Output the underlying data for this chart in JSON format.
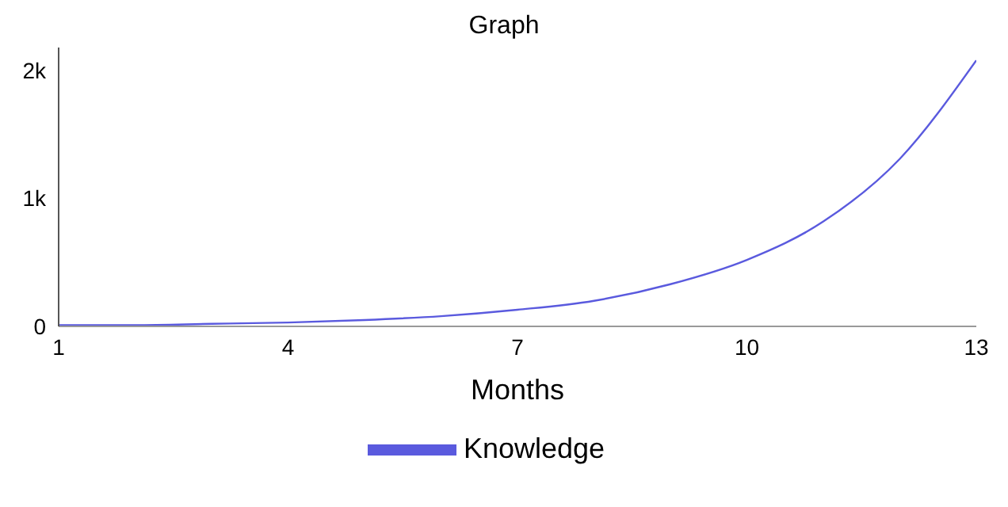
{
  "chart_data": {
    "type": "line",
    "title": "Graph",
    "xlabel": "Months",
    "x": [
      1,
      2,
      3,
      4,
      5,
      6,
      7,
      8,
      9,
      10,
      11,
      12,
      13
    ],
    "series": [
      {
        "name": "Knowledge",
        "color": "#5a5ade",
        "values": [
          10,
          10,
          20,
          30,
          50,
          80,
          130,
          200,
          330,
          520,
          820,
          1310,
          2080
        ]
      }
    ],
    "xlim": [
      1,
      13
    ],
    "xticks": [
      1,
      4,
      7,
      10,
      13
    ],
    "ylim": [
      0,
      2180
    ],
    "yticks": [
      {
        "value": 0,
        "label": "0"
      },
      {
        "value": 1000,
        "label": "1k"
      },
      {
        "value": 2000,
        "label": "2k"
      }
    ],
    "legend": "bottom",
    "marker": "none",
    "line_style": "solid"
  }
}
